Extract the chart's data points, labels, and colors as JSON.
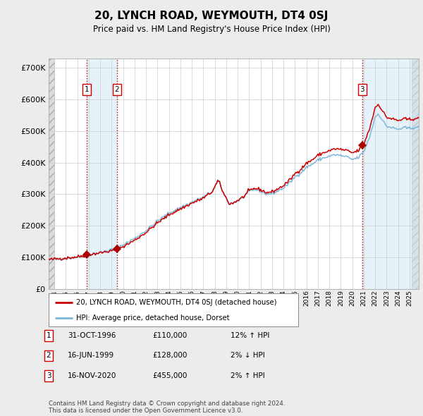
{
  "title": "20, LYNCH ROAD, WEYMOUTH, DT4 0SJ",
  "subtitle": "Price paid vs. HM Land Registry's House Price Index (HPI)",
  "ylabel_ticks": [
    "£0",
    "£100K",
    "£200K",
    "£300K",
    "£400K",
    "£500K",
    "£600K",
    "£700K"
  ],
  "ytick_vals": [
    0,
    100000,
    200000,
    300000,
    400000,
    500000,
    600000,
    700000
  ],
  "ylim": [
    0,
    730000
  ],
  "xlim_start": 1993.5,
  "xlim_end": 2025.8,
  "transactions": [
    {
      "num": 1,
      "date": "31-OCT-1996",
      "price": 110000,
      "pct": "12%",
      "dir": "↑",
      "x": 1996.83
    },
    {
      "num": 2,
      "date": "16-JUN-1999",
      "price": 128000,
      "pct": "2%",
      "dir": "↓",
      "x": 1999.46
    },
    {
      "num": 3,
      "date": "16-NOV-2020",
      "price": 455000,
      "pct": "2%",
      "dir": "↑",
      "x": 2020.87
    }
  ],
  "hpi_line_color": "#7ab4d8",
  "price_line_color": "#cc0000",
  "marker_color": "#aa0000",
  "vline_color": "#cc0000",
  "shade_color": "#d0e8f5",
  "grid_color": "#cccccc",
  "background_color": "#ffffff",
  "outer_bg_color": "#ececec",
  "footer_text": "Contains HM Land Registry data © Crown copyright and database right 2024.\nThis data is licensed under the Open Government Licence v3.0.",
  "table_rows": [
    {
      "num": 1,
      "date": "31-OCT-1996",
      "price": "£110,000",
      "hpi": "12% ↑ HPI"
    },
    {
      "num": 2,
      "date": "16-JUN-1999",
      "price": "£128,000",
      "hpi": "2% ↓ HPI"
    },
    {
      "num": 3,
      "date": "16-NOV-2020",
      "price": "£455,000",
      "hpi": "2% ↑ HPI"
    }
  ],
  "hpi_waypoints": [
    [
      1993.5,
      92000
    ],
    [
      1994.0,
      94000
    ],
    [
      1995.0,
      97000
    ],
    [
      1996.0,
      101000
    ],
    [
      1997.0,
      108000
    ],
    [
      1998.0,
      116000
    ],
    [
      1999.0,
      125000
    ],
    [
      2000.0,
      140000
    ],
    [
      2001.0,
      160000
    ],
    [
      2002.0,
      185000
    ],
    [
      2003.0,
      215000
    ],
    [
      2004.0,
      240000
    ],
    [
      2005.0,
      258000
    ],
    [
      2006.0,
      275000
    ],
    [
      2007.0,
      290000
    ],
    [
      2007.8,
      310000
    ],
    [
      2008.3,
      345000
    ],
    [
      2008.8,
      300000
    ],
    [
      2009.3,
      268000
    ],
    [
      2009.8,
      275000
    ],
    [
      2010.5,
      290000
    ],
    [
      2011.0,
      308000
    ],
    [
      2011.5,
      315000
    ],
    [
      2012.0,
      310000
    ],
    [
      2012.5,
      300000
    ],
    [
      2013.0,
      302000
    ],
    [
      2013.5,
      310000
    ],
    [
      2014.0,
      320000
    ],
    [
      2014.5,
      335000
    ],
    [
      2015.0,
      355000
    ],
    [
      2015.5,
      368000
    ],
    [
      2016.0,
      385000
    ],
    [
      2016.5,
      395000
    ],
    [
      2017.0,
      408000
    ],
    [
      2017.5,
      415000
    ],
    [
      2018.0,
      420000
    ],
    [
      2018.5,
      425000
    ],
    [
      2019.0,
      422000
    ],
    [
      2019.5,
      418000
    ],
    [
      2020.0,
      410000
    ],
    [
      2020.5,
      415000
    ],
    [
      2021.0,
      435000
    ],
    [
      2021.5,
      480000
    ],
    [
      2022.0,
      545000
    ],
    [
      2022.3,
      555000
    ],
    [
      2022.6,
      535000
    ],
    [
      2023.0,
      515000
    ],
    [
      2023.5,
      510000
    ],
    [
      2024.0,
      505000
    ],
    [
      2024.5,
      510000
    ],
    [
      2025.0,
      508000
    ],
    [
      2025.5,
      512000
    ],
    [
      2025.8,
      510000
    ]
  ]
}
